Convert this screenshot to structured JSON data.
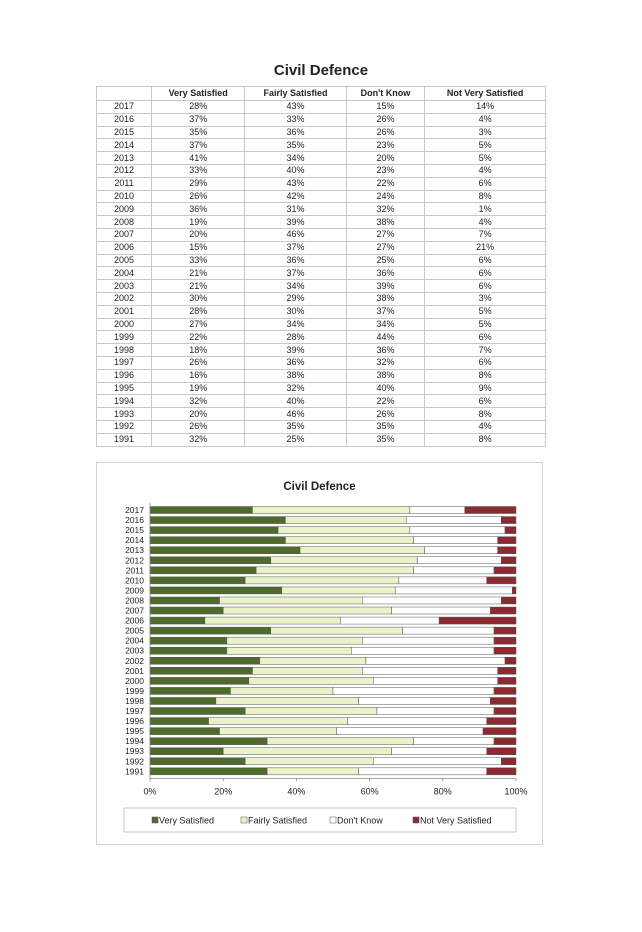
{
  "table": {
    "title": "Civil Defence",
    "headers": [
      "",
      "Very Satisfied",
      "Fairly Satisfied",
      "Don't Know",
      "Not Very Satisfied"
    ],
    "rows": [
      [
        "2017",
        "28%",
        "43%",
        "15%",
        "14%"
      ],
      [
        "2016",
        "37%",
        "33%",
        "26%",
        "4%"
      ],
      [
        "2015",
        "35%",
        "36%",
        "26%",
        "3%"
      ],
      [
        "2014",
        "37%",
        "35%",
        "23%",
        "5%"
      ],
      [
        "2013",
        "41%",
        "34%",
        "20%",
        "5%"
      ],
      [
        "2012",
        "33%",
        "40%",
        "23%",
        "4%"
      ],
      [
        "2011",
        "29%",
        "43%",
        "22%",
        "6%"
      ],
      [
        "2010",
        "26%",
        "42%",
        "24%",
        "8%"
      ],
      [
        "2009",
        "36%",
        "31%",
        "32%",
        "1%"
      ],
      [
        "2008",
        "19%",
        "39%",
        "38%",
        "4%"
      ],
      [
        "2007",
        "20%",
        "46%",
        "27%",
        "7%"
      ],
      [
        "2006",
        "15%",
        "37%",
        "27%",
        "21%"
      ],
      [
        "2005",
        "33%",
        "36%",
        "25%",
        "6%"
      ],
      [
        "2004",
        "21%",
        "37%",
        "36%",
        "6%"
      ],
      [
        "2003",
        "21%",
        "34%",
        "39%",
        "6%"
      ],
      [
        "2002",
        "30%",
        "29%",
        "38%",
        "3%"
      ],
      [
        "2001",
        "28%",
        "30%",
        "37%",
        "5%"
      ],
      [
        "2000",
        "27%",
        "34%",
        "34%",
        "5%"
      ],
      [
        "1999",
        "22%",
        "28%",
        "44%",
        "6%"
      ],
      [
        "1998",
        "18%",
        "39%",
        "36%",
        "7%"
      ],
      [
        "1997",
        "26%",
        "36%",
        "32%",
        "6%"
      ],
      [
        "1996",
        "16%",
        "38%",
        "38%",
        "8%"
      ],
      [
        "1995",
        "19%",
        "32%",
        "40%",
        "9%"
      ],
      [
        "1994",
        "32%",
        "40%",
        "22%",
        "6%"
      ],
      [
        "1993",
        "20%",
        "46%",
        "26%",
        "8%"
      ],
      [
        "1992",
        "26%",
        "35%",
        "35%",
        "4%"
      ],
      [
        "1991",
        "32%",
        "25%",
        "35%",
        "8%"
      ]
    ]
  },
  "chart_data": {
    "type": "bar",
    "orientation": "horizontal",
    "stacked": "percent",
    "title": "Civil Defence",
    "categories": [
      "2017",
      "2016",
      "2015",
      "2014",
      "2013",
      "2012",
      "2011",
      "2010",
      "2009",
      "2008",
      "2007",
      "2006",
      "2005",
      "2004",
      "2003",
      "2002",
      "2001",
      "2000",
      "1999",
      "1998",
      "1997",
      "1996",
      "1995",
      "1994",
      "1993",
      "1992",
      "1991"
    ],
    "series": [
      {
        "name": "Very Satisfied",
        "color": "#4e6b2b",
        "values": [
          28,
          37,
          35,
          37,
          41,
          33,
          29,
          26,
          36,
          19,
          20,
          15,
          33,
          21,
          21,
          30,
          28,
          27,
          22,
          18,
          26,
          16,
          19,
          32,
          20,
          26,
          32
        ]
      },
      {
        "name": "Fairly Satisfied",
        "color": "#e9f2c8",
        "values": [
          43,
          33,
          36,
          35,
          34,
          40,
          43,
          42,
          31,
          39,
          46,
          37,
          36,
          37,
          34,
          29,
          30,
          34,
          28,
          39,
          36,
          38,
          32,
          40,
          46,
          35,
          25
        ]
      },
      {
        "name": "Don't Know",
        "color": "#ffffff",
        "values": [
          15,
          26,
          26,
          23,
          20,
          23,
          22,
          24,
          32,
          38,
          27,
          27,
          25,
          36,
          39,
          38,
          37,
          34,
          44,
          36,
          32,
          38,
          40,
          22,
          26,
          35,
          35
        ]
      },
      {
        "name": "Not Very Satisfied",
        "color": "#8b2b31",
        "values": [
          14,
          4,
          3,
          5,
          5,
          4,
          6,
          8,
          1,
          4,
          7,
          21,
          6,
          6,
          6,
          3,
          5,
          5,
          6,
          7,
          6,
          8,
          9,
          6,
          8,
          4,
          8
        ]
      }
    ],
    "xlim": [
      0,
      100
    ],
    "xticks": [
      "0%",
      "20%",
      "40%",
      "60%",
      "80%",
      "100%"
    ],
    "legend_position": "bottom",
    "grid": false
  }
}
